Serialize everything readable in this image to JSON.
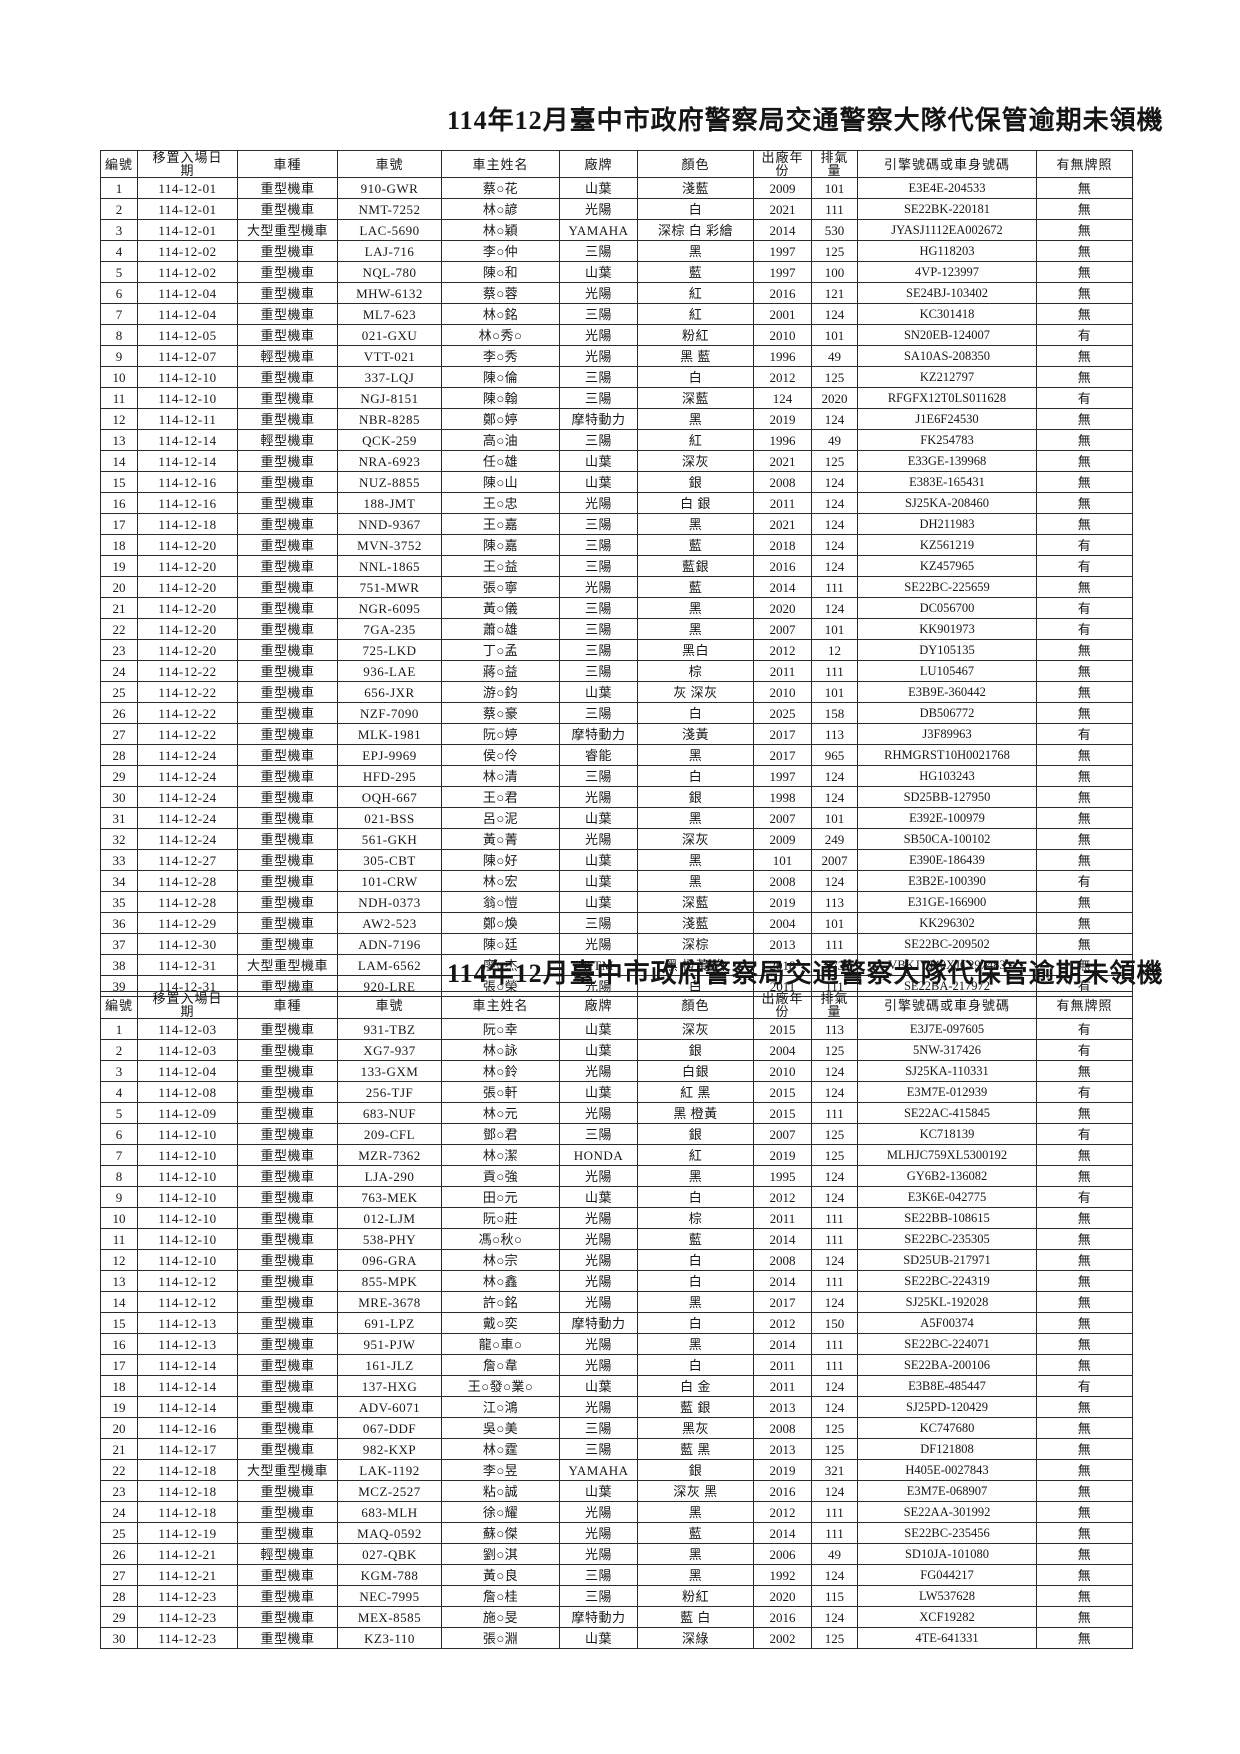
{
  "columns": [
    "編號",
    "移置入場日期",
    "車種",
    "車號",
    "車主姓名",
    "廠牌",
    "顏色",
    "出廠年份",
    "排氣量",
    "引擎號碼或車身號碼",
    "有無牌照"
  ],
  "sections": [
    {
      "title": "114年12月臺中市政府警察局交通警察大隊代保管逾期未領機",
      "rows": [
        [
          "1",
          "114-12-01",
          "重型機車",
          "910-GWR",
          "蔡○花",
          "山葉",
          "淺藍",
          "2009",
          "101",
          "E3E4E-204533",
          "無"
        ],
        [
          "2",
          "114-12-01",
          "重型機車",
          "NMT-7252",
          "林○諺",
          "光陽",
          "白",
          "2021",
          "111",
          "SE22BK-220181",
          "無"
        ],
        [
          "3",
          "114-12-01",
          "大型重型機車",
          "LAC-5690",
          "林○穎",
          "YAMAHA",
          "深棕 白 彩繪",
          "2014",
          "530",
          "JYASJ1112EA002672",
          "無"
        ],
        [
          "4",
          "114-12-02",
          "重型機車",
          "LAJ-716",
          "李○仲",
          "三陽",
          "黑",
          "1997",
          "125",
          "HG118203",
          "無"
        ],
        [
          "5",
          "114-12-02",
          "重型機車",
          "NQL-780",
          "陳○和",
          "山葉",
          "藍",
          "1997",
          "100",
          "4VP-123997",
          "無"
        ],
        [
          "6",
          "114-12-04",
          "重型機車",
          "MHW-6132",
          "蔡○蓉",
          "光陽",
          "紅",
          "2016",
          "121",
          "SE24BJ-103402",
          "無"
        ],
        [
          "7",
          "114-12-04",
          "重型機車",
          "ML7-623",
          "林○銘",
          "三陽",
          "紅",
          "2001",
          "124",
          "KC301418",
          "無"
        ],
        [
          "8",
          "114-12-05",
          "重型機車",
          "021-GXU",
          "林○秀○",
          "光陽",
          "粉紅",
          "2010",
          "101",
          "SN20EB-124007",
          "有"
        ],
        [
          "9",
          "114-12-07",
          "輕型機車",
          "VTT-021",
          "李○秀",
          "光陽",
          "黑 藍",
          "1996",
          "49",
          "SA10AS-208350",
          "無"
        ],
        [
          "10",
          "114-12-10",
          "重型機車",
          "337-LQJ",
          "陳○倫",
          "三陽",
          "白",
          "2012",
          "125",
          "KZ212797",
          "無"
        ],
        [
          "11",
          "114-12-10",
          "重型機車",
          "NGJ-8151",
          "陳○翰",
          "三陽",
          "深藍",
          "124",
          "2020",
          "RFGFX12T0LS011628",
          "有"
        ],
        [
          "12",
          "114-12-11",
          "重型機車",
          "NBR-8285",
          "鄭○婷",
          "摩特動力",
          "黑",
          "2019",
          "124",
          "J1E6F24530",
          "無"
        ],
        [
          "13",
          "114-12-14",
          "輕型機車",
          "QCK-259",
          "高○油",
          "三陽",
          "紅",
          "1996",
          "49",
          "FK254783",
          "無"
        ],
        [
          "14",
          "114-12-14",
          "重型機車",
          "NRA-6923",
          "任○雄",
          "山葉",
          "深灰",
          "2021",
          "125",
          "E33GE-139968",
          "無"
        ],
        [
          "15",
          "114-12-16",
          "重型機車",
          "NUZ-8855",
          "陳○山",
          "山葉",
          "銀",
          "2008",
          "124",
          "E383E-165431",
          "無"
        ],
        [
          "16",
          "114-12-16",
          "重型機車",
          "188-JMT",
          "王○忠",
          "光陽",
          "白 銀",
          "2011",
          "124",
          "SJ25KA-208460",
          "無"
        ],
        [
          "17",
          "114-12-18",
          "重型機車",
          "NND-9367",
          "王○嘉",
          "三陽",
          "黑",
          "2021",
          "124",
          "DH211983",
          "無"
        ],
        [
          "18",
          "114-12-20",
          "重型機車",
          "MVN-3752",
          "陳○嘉",
          "三陽",
          "藍",
          "2018",
          "124",
          "KZ561219",
          "有"
        ],
        [
          "19",
          "114-12-20",
          "重型機車",
          "NNL-1865",
          "王○益",
          "三陽",
          "藍銀",
          "2016",
          "124",
          "KZ457965",
          "有"
        ],
        [
          "20",
          "114-12-20",
          "重型機車",
          "751-MWR",
          "張○寧",
          "光陽",
          "藍",
          "2014",
          "111",
          "SE22BC-225659",
          "無"
        ],
        [
          "21",
          "114-12-20",
          "重型機車",
          "NGR-6095",
          "黃○儀",
          "三陽",
          "黑",
          "2020",
          "124",
          "DC056700",
          "有"
        ],
        [
          "22",
          "114-12-20",
          "重型機車",
          "7GA-235",
          "蕭○雄",
          "三陽",
          "黑",
          "2007",
          "101",
          "KK901973",
          "有"
        ],
        [
          "23",
          "114-12-20",
          "重型機車",
          "725-LKD",
          "丁○孟",
          "三陽",
          "黑白",
          "2012",
          "12",
          "DY105135",
          "無"
        ],
        [
          "24",
          "114-12-22",
          "重型機車",
          "936-LAE",
          "蔣○益",
          "三陽",
          "棕",
          "2011",
          "111",
          "LU105467",
          "無"
        ],
        [
          "25",
          "114-12-22",
          "重型機車",
          "656-JXR",
          "游○鈞",
          "山葉",
          "灰 深灰",
          "2010",
          "101",
          "E3B9E-360442",
          "無"
        ],
        [
          "26",
          "114-12-22",
          "重型機車",
          "NZF-7090",
          "蔡○豪",
          "三陽",
          "白",
          "2025",
          "158",
          "DB506772",
          "無"
        ],
        [
          "27",
          "114-12-22",
          "重型機車",
          "MLK-1981",
          "阮○婷",
          "摩特動力",
          "淺黃",
          "2017",
          "113",
          "J3F89963",
          "有"
        ],
        [
          "28",
          "114-12-24",
          "重型機車",
          "EPJ-9969",
          "侯○伶",
          "睿能",
          "黑",
          "2017",
          "965",
          "RHMGRST10H0021768",
          "無"
        ],
        [
          "29",
          "114-12-24",
          "重型機車",
          "HFD-295",
          "林○清",
          "三陽",
          "白",
          "1997",
          "124",
          "HG103243",
          "無"
        ],
        [
          "30",
          "114-12-24",
          "重型機車",
          "OQH-667",
          "王○君",
          "光陽",
          "銀",
          "1998",
          "124",
          "SD25BB-127950",
          "無"
        ],
        [
          "31",
          "114-12-24",
          "重型機車",
          "021-BSS",
          "呂○泥",
          "山葉",
          "黑",
          "2007",
          "101",
          "E392E-100979",
          "無"
        ],
        [
          "32",
          "114-12-24",
          "重型機車",
          "561-GKH",
          "黃○菁",
          "光陽",
          "深灰",
          "2009",
          "249",
          "SB50CA-100102",
          "無"
        ],
        [
          "33",
          "114-12-27",
          "重型機車",
          "305-CBT",
          "陳○好",
          "山葉",
          "黑",
          "101",
          "2007",
          "E390E-186439",
          "無"
        ],
        [
          "34",
          "114-12-28",
          "重型機車",
          "101-CRW",
          "林○宏",
          "山葉",
          "黑",
          "2008",
          "124",
          "E3B2E-100390",
          "有"
        ],
        [
          "35",
          "114-12-28",
          "重型機車",
          "NDH-0373",
          "翁○愷",
          "山葉",
          "深藍",
          "2019",
          "113",
          "E31GE-166900",
          "無"
        ],
        [
          "36",
          "114-12-29",
          "重型機車",
          "AW2-523",
          "鄭○煥",
          "三陽",
          "淺藍",
          "2004",
          "101",
          "KK296302",
          "無"
        ],
        [
          "37",
          "114-12-30",
          "重型機車",
          "ADN-7196",
          "陳○廷",
          "光陽",
          "深棕",
          "2013",
          "111",
          "SE22BC-209502",
          "無"
        ],
        [
          "38",
          "114-12-31",
          "大型重型機車",
          "LAM-6562",
          "廖○杰",
          "KTM",
          "黑 橙黃 白",
          "2018",
          "373",
          "VBKJYJ40XJC297483",
          "無"
        ],
        [
          "39",
          "114-12-31",
          "重型機車",
          "920-LRE",
          "張○榮",
          "光陽",
          "白",
          "2011",
          "111",
          "SE22BA-217972",
          "有"
        ]
      ]
    },
    {
      "title": "114年12月臺中市政府警察局交通警察大隊代保管逾期未領機",
      "rows": [
        [
          "1",
          "114-12-03",
          "重型機車",
          "931-TBZ",
          "阮○幸",
          "山葉",
          "深灰",
          "2015",
          "113",
          "E3J7E-097605",
          "有"
        ],
        [
          "2",
          "114-12-03",
          "重型機車",
          "XG7-937",
          "林○詠",
          "山葉",
          "銀",
          "2004",
          "125",
          "5NW-317426",
          "有"
        ],
        [
          "3",
          "114-12-04",
          "重型機車",
          "133-GXM",
          "林○鈴",
          "光陽",
          "白銀",
          "2010",
          "124",
          "SJ25KA-110331",
          "無"
        ],
        [
          "4",
          "114-12-08",
          "重型機車",
          "256-TJF",
          "張○軒",
          "山葉",
          "紅 黑",
          "2015",
          "124",
          "E3M7E-012939",
          "有"
        ],
        [
          "5",
          "114-12-09",
          "重型機車",
          "683-NUF",
          "林○元",
          "光陽",
          "黑 橙黃",
          "2015",
          "111",
          "SE22AC-415845",
          "無"
        ],
        [
          "6",
          "114-12-10",
          "重型機車",
          "209-CFL",
          "鄧○君",
          "三陽",
          "銀",
          "2007",
          "125",
          "KC718139",
          "有"
        ],
        [
          "7",
          "114-12-10",
          "重型機車",
          "MZR-7362",
          "林○潔",
          "HONDA",
          "紅",
          "2019",
          "125",
          "MLHJC759XL5300192",
          "無"
        ],
        [
          "8",
          "114-12-10",
          "重型機車",
          "LJA-290",
          "貢○強",
          "光陽",
          "黑",
          "1995",
          "124",
          "GY6B2-136082",
          "無"
        ],
        [
          "9",
          "114-12-10",
          "重型機車",
          "763-MEK",
          "田○元",
          "山葉",
          "白",
          "2012",
          "124",
          "E3K6E-042775",
          "有"
        ],
        [
          "10",
          "114-12-10",
          "重型機車",
          "012-LJM",
          "阮○莊",
          "光陽",
          "棕",
          "2011",
          "111",
          "SE22BB-108615",
          "無"
        ],
        [
          "11",
          "114-12-10",
          "重型機車",
          "538-PHY",
          "馮○秋○",
          "光陽",
          "藍",
          "2014",
          "111",
          "SE22BC-235305",
          "無"
        ],
        [
          "12",
          "114-12-10",
          "重型機車",
          "096-GRA",
          "林○宗",
          "光陽",
          "白",
          "2008",
          "124",
          "SD25UB-217971",
          "無"
        ],
        [
          "13",
          "114-12-12",
          "重型機車",
          "855-MPK",
          "林○鑫",
          "光陽",
          "白",
          "2014",
          "111",
          "SE22BC-224319",
          "無"
        ],
        [
          "14",
          "114-12-12",
          "重型機車",
          "MRE-3678",
          "許○銘",
          "光陽",
          "黑",
          "2017",
          "124",
          "SJ25KL-192028",
          "無"
        ],
        [
          "15",
          "114-12-13",
          "重型機車",
          "691-LPZ",
          "戴○奕",
          "摩特動力",
          "白",
          "2012",
          "150",
          "A5F00374",
          "無"
        ],
        [
          "16",
          "114-12-13",
          "重型機車",
          "951-PJW",
          "龍○車○",
          "光陽",
          "黑",
          "2014",
          "111",
          "SE22BC-224071",
          "無"
        ],
        [
          "17",
          "114-12-14",
          "重型機車",
          "161-JLZ",
          "詹○韋",
          "光陽",
          "白",
          "2011",
          "111",
          "SE22BA-200106",
          "無"
        ],
        [
          "18",
          "114-12-14",
          "重型機車",
          "137-HXG",
          "王○發○業○",
          "山葉",
          "白 金",
          "2011",
          "124",
          "E3B8E-485447",
          "有"
        ],
        [
          "19",
          "114-12-14",
          "重型機車",
          "ADV-6071",
          "江○鴻",
          "光陽",
          "藍 銀",
          "2013",
          "124",
          "SJ25PD-120429",
          "無"
        ],
        [
          "20",
          "114-12-16",
          "重型機車",
          "067-DDF",
          "吳○美",
          "三陽",
          "黑灰",
          "2008",
          "125",
          "KC747680",
          "無"
        ],
        [
          "21",
          "114-12-17",
          "重型機車",
          "982-KXP",
          "林○霆",
          "三陽",
          "藍 黑",
          "2013",
          "125",
          "DF121808",
          "無"
        ],
        [
          "22",
          "114-12-18",
          "大型重型機車",
          "LAK-1192",
          "李○昱",
          "YAMAHA",
          "銀",
          "2019",
          "321",
          "H405E-0027843",
          "無"
        ],
        [
          "23",
          "114-12-18",
          "重型機車",
          "MCZ-2527",
          "粘○誠",
          "山葉",
          "深灰 黑",
          "2016",
          "124",
          "E3M7E-068907",
          "無"
        ],
        [
          "24",
          "114-12-18",
          "重型機車",
          "683-MLH",
          "徐○耀",
          "光陽",
          "黑",
          "2012",
          "111",
          "SE22AA-301992",
          "無"
        ],
        [
          "25",
          "114-12-19",
          "重型機車",
          "MAQ-0592",
          "蘇○傑",
          "光陽",
          "藍",
          "2014",
          "111",
          "SE22BC-235456",
          "無"
        ],
        [
          "26",
          "114-12-21",
          "輕型機車",
          "027-QBK",
          "劉○淇",
          "光陽",
          "黑",
          "2006",
          "49",
          "SD10JA-101080",
          "無"
        ],
        [
          "27",
          "114-12-21",
          "重型機車",
          "KGM-788",
          "黃○良",
          "三陽",
          "黑",
          "1992",
          "124",
          "FG044217",
          "無"
        ],
        [
          "28",
          "114-12-23",
          "重型機車",
          "NEC-7995",
          "詹○桂",
          "三陽",
          "粉紅",
          "2020",
          "115",
          "LW537628",
          "無"
        ],
        [
          "29",
          "114-12-23",
          "重型機車",
          "MEX-8585",
          "施○旻",
          "摩特動力",
          "藍 白",
          "2016",
          "124",
          "XCF19282",
          "無"
        ],
        [
          "30",
          "114-12-23",
          "重型機車",
          "KZ3-110",
          "張○淵",
          "山葉",
          "深綠",
          "2002",
          "125",
          "4TE-641331",
          "無"
        ]
      ]
    }
  ]
}
